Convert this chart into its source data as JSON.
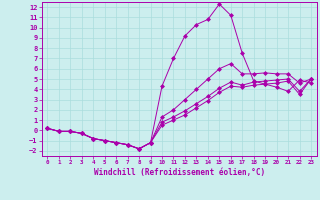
{
  "xlabel": "Windchill (Refroidissement éolien,°C)",
  "xlim": [
    -0.5,
    23.5
  ],
  "ylim": [
    -2.5,
    12.5
  ],
  "xticks": [
    0,
    1,
    2,
    3,
    4,
    5,
    6,
    7,
    8,
    9,
    10,
    11,
    12,
    13,
    14,
    15,
    16,
    17,
    18,
    19,
    20,
    21,
    22,
    23
  ],
  "yticks": [
    -2,
    -1,
    0,
    1,
    2,
    3,
    4,
    5,
    6,
    7,
    8,
    9,
    10,
    11,
    12
  ],
  "bg_color": "#cceeee",
  "line_color": "#aa00aa",
  "grid_color": "#aadddd",
  "curves": [
    {
      "x": [
        0,
        1,
        2,
        3,
        4,
        5,
        6,
        7,
        8,
        9,
        10,
        11,
        12,
        13,
        14,
        15,
        16,
        17,
        18,
        19,
        20,
        21,
        22,
        23
      ],
      "y": [
        0.2,
        -0.1,
        -0.1,
        -0.3,
        -0.8,
        -1.0,
        -1.2,
        -1.4,
        -1.8,
        -1.2,
        4.3,
        7.0,
        9.2,
        10.3,
        10.8,
        12.3,
        11.2,
        7.5,
        4.8,
        4.5,
        4.2,
        3.8,
        4.9,
        4.6
      ]
    },
    {
      "x": [
        0,
        1,
        2,
        3,
        4,
        5,
        6,
        7,
        8,
        9,
        10,
        11,
        12,
        13,
        14,
        15,
        16,
        17,
        18,
        19,
        20,
        21,
        22,
        23
      ],
      "y": [
        0.2,
        -0.1,
        -0.1,
        -0.3,
        -0.8,
        -1.0,
        -1.2,
        -1.4,
        -1.8,
        -1.2,
        1.3,
        2.0,
        3.0,
        4.0,
        5.0,
        6.0,
        6.5,
        5.5,
        5.5,
        5.6,
        5.5,
        5.5,
        4.6,
        5.0
      ]
    },
    {
      "x": [
        0,
        1,
        2,
        3,
        4,
        5,
        6,
        7,
        8,
        9,
        10,
        11,
        12,
        13,
        14,
        15,
        16,
        17,
        18,
        19,
        20,
        21,
        22,
        23
      ],
      "y": [
        0.2,
        -0.1,
        -0.1,
        -0.3,
        -0.8,
        -1.0,
        -1.2,
        -1.4,
        -1.8,
        -1.2,
        0.8,
        1.3,
        1.9,
        2.6,
        3.3,
        4.1,
        4.7,
        4.4,
        4.7,
        4.8,
        4.9,
        5.0,
        3.8,
        5.0
      ]
    },
    {
      "x": [
        0,
        1,
        2,
        3,
        4,
        5,
        6,
        7,
        8,
        9,
        10,
        11,
        12,
        13,
        14,
        15,
        16,
        17,
        18,
        19,
        20,
        21,
        22,
        23
      ],
      "y": [
        0.2,
        -0.1,
        -0.1,
        -0.3,
        -0.8,
        -1.0,
        -1.2,
        -1.4,
        -1.8,
        -1.2,
        0.5,
        1.0,
        1.5,
        2.2,
        2.9,
        3.7,
        4.3,
        4.2,
        4.4,
        4.5,
        4.6,
        4.8,
        3.5,
        5.0
      ]
    }
  ]
}
